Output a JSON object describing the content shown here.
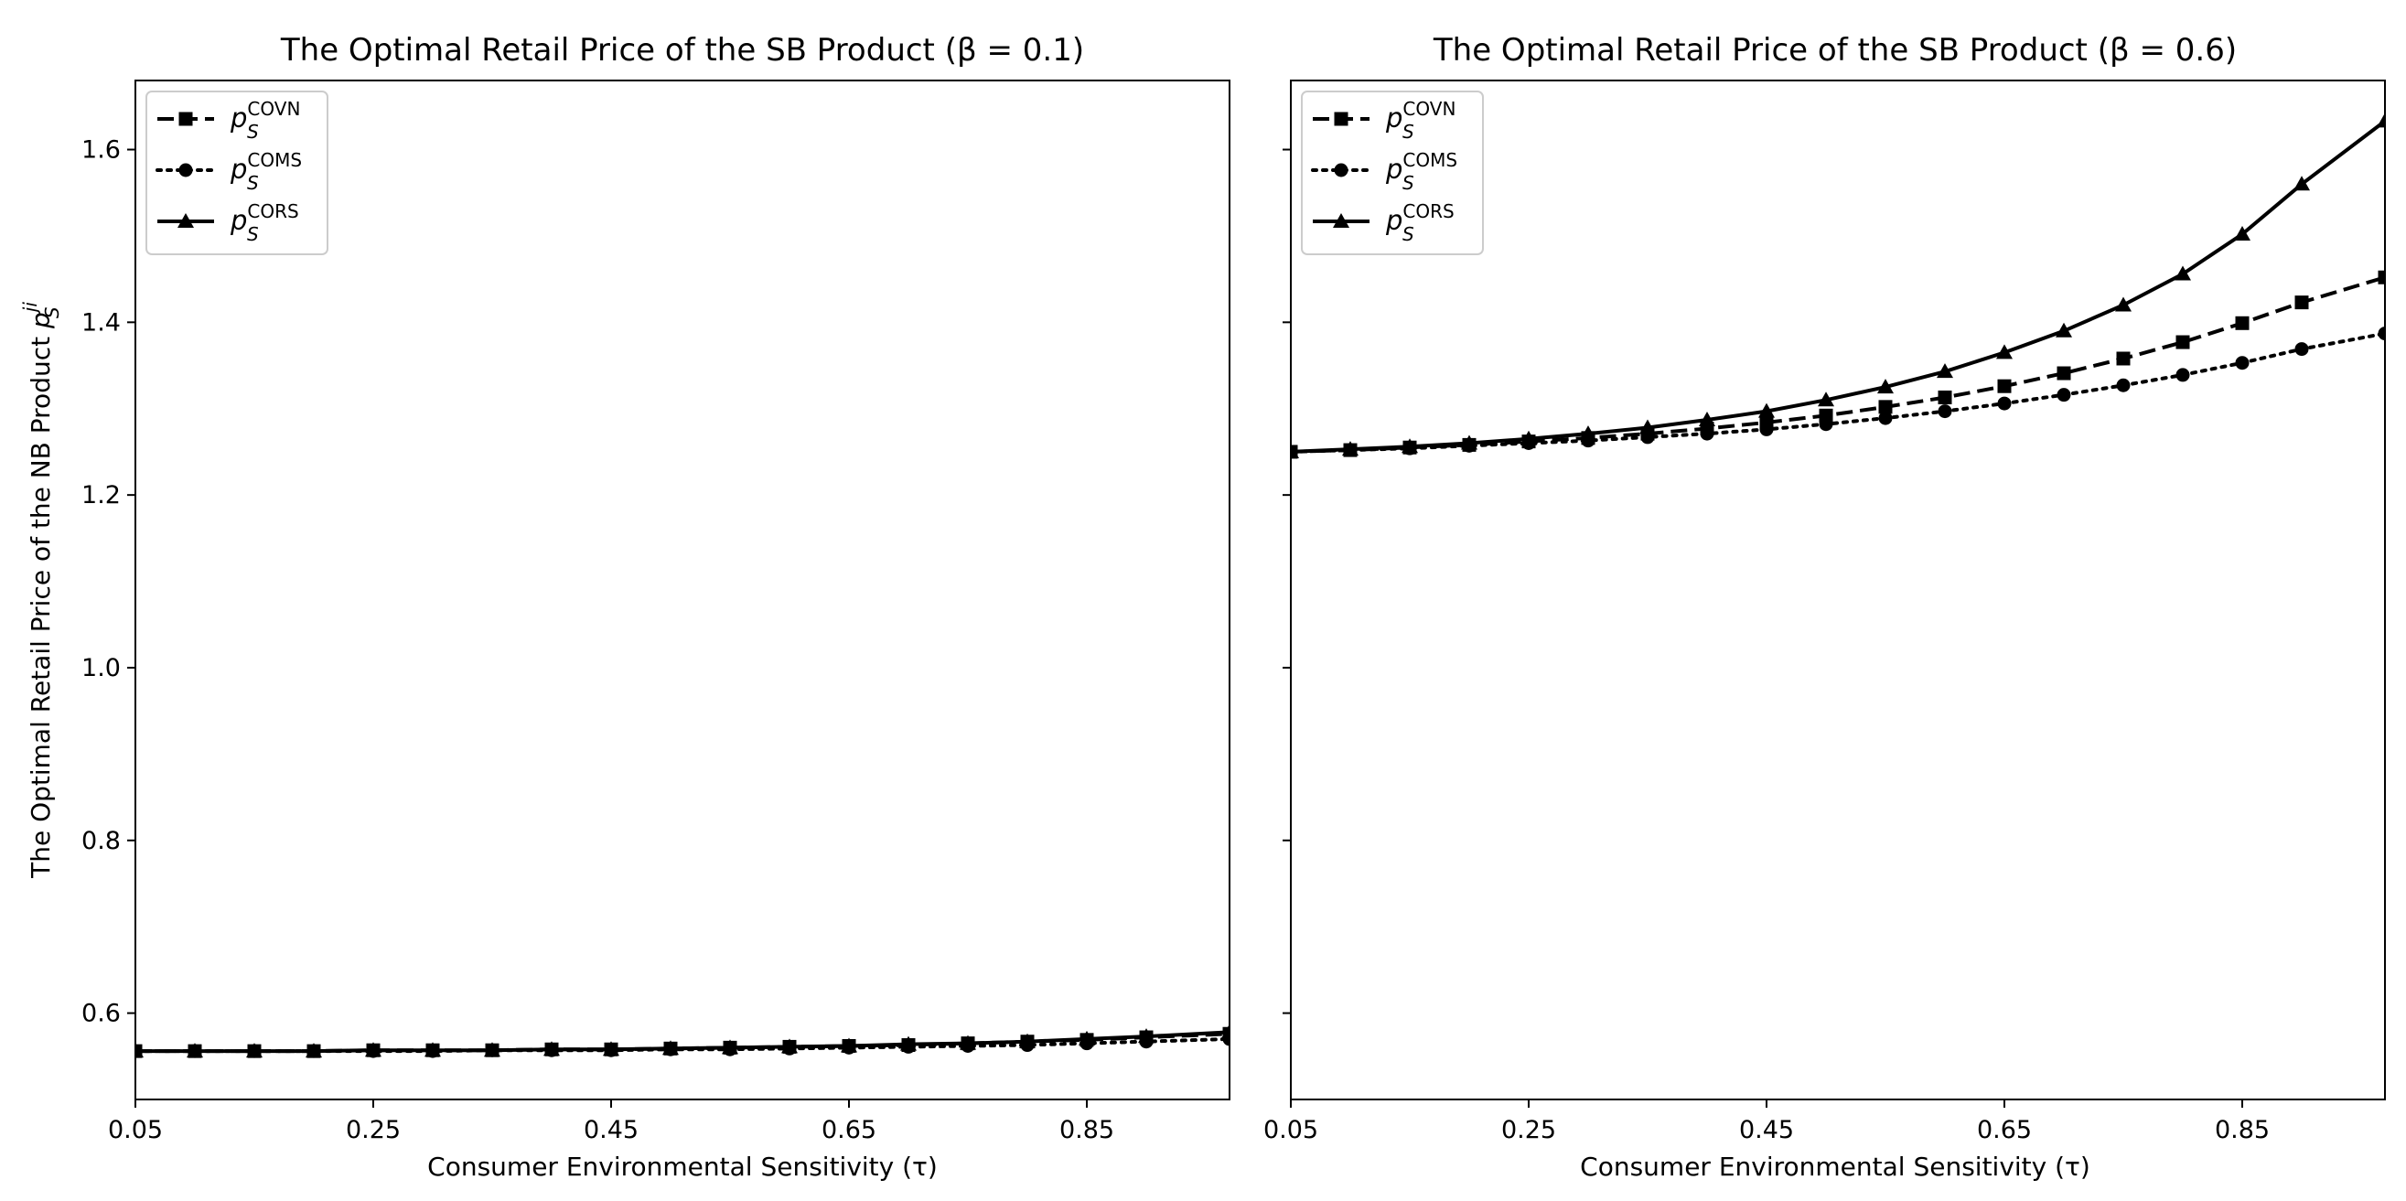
{
  "figure": {
    "ylabel_main": "The Optimal Retail Price of the NB Product ",
    "ylabel_math": "p",
    "ylabel_sub": "S",
    "ylabel_sup": "ji"
  },
  "legend_entries": [
    {
      "base": "p",
      "sub": "S",
      "sup": "COVN"
    },
    {
      "base": "p",
      "sub": "S",
      "sup": "COMS"
    },
    {
      "base": "p",
      "sub": "S",
      "sup": "CORS"
    }
  ],
  "chart_data": [
    {
      "type": "line",
      "title": "The Optimal Retail Price of the SB Product (β = 0.1)",
      "xlabel": "Consumer Environmental Sensitivity (τ)",
      "ylabel": "The Optimal Retail Price of the NB Product pS^ji",
      "xlim": [
        0.05,
        0.97
      ],
      "ylim": [
        0.5,
        1.68
      ],
      "xticks": [
        0.05,
        0.25,
        0.45,
        0.65,
        0.85
      ],
      "xtick_labels": [
        "0.05",
        "0.25",
        "0.45",
        "0.65",
        "0.85"
      ],
      "yticks": [
        0.6,
        0.8,
        1.0,
        1.2,
        1.4,
        1.6
      ],
      "ytick_labels": [
        "0.6",
        "0.8",
        "1.0",
        "1.2",
        "1.4",
        "1.6"
      ],
      "legend": "top-left",
      "x": [
        0.05,
        0.1,
        0.15,
        0.2,
        0.25,
        0.3,
        0.35,
        0.4,
        0.45,
        0.5,
        0.55,
        0.6,
        0.65,
        0.7,
        0.75,
        0.8,
        0.85,
        0.9,
        0.97
      ],
      "series": [
        {
          "name": "COVN",
          "style": "dashed",
          "marker": "square",
          "values": [
            0.556,
            0.556,
            0.556,
            0.556,
            0.557,
            0.557,
            0.557,
            0.558,
            0.558,
            0.559,
            0.56,
            0.561,
            0.562,
            0.563,
            0.565,
            0.567,
            0.569,
            0.572,
            0.576
          ]
        },
        {
          "name": "COMS",
          "style": "dotted",
          "marker": "circle",
          "values": [
            0.556,
            0.556,
            0.556,
            0.556,
            0.556,
            0.556,
            0.557,
            0.557,
            0.557,
            0.558,
            0.558,
            0.559,
            0.56,
            0.561,
            0.562,
            0.563,
            0.565,
            0.567,
            0.57
          ]
        },
        {
          "name": "CORS",
          "style": "solid",
          "marker": "triangle",
          "values": [
            0.556,
            0.556,
            0.556,
            0.556,
            0.557,
            0.557,
            0.557,
            0.558,
            0.558,
            0.559,
            0.56,
            0.561,
            0.562,
            0.564,
            0.565,
            0.567,
            0.57,
            0.573,
            0.578
          ]
        }
      ]
    },
    {
      "type": "line",
      "title": "The Optimal Retail Price of the SB Product (β = 0.6)",
      "xlabel": "Consumer Environmental Sensitivity (τ)",
      "xlim": [
        0.05,
        0.97
      ],
      "ylim": [
        0.5,
        1.68
      ],
      "xticks": [
        0.05,
        0.25,
        0.45,
        0.65,
        0.85
      ],
      "xtick_labels": [
        "0.05",
        "0.25",
        "0.45",
        "0.65",
        "0.85"
      ],
      "yticks": [
        0.6,
        0.8,
        1.0,
        1.2,
        1.4,
        1.6
      ],
      "legend": "top-left",
      "x": [
        0.05,
        0.1,
        0.15,
        0.2,
        0.25,
        0.3,
        0.35,
        0.4,
        0.45,
        0.5,
        0.55,
        0.6,
        0.65,
        0.7,
        0.75,
        0.8,
        0.85,
        0.9,
        0.97
      ],
      "series": [
        {
          "name": "COVN",
          "style": "dashed",
          "marker": "square",
          "values": [
            1.25,
            1.252,
            1.255,
            1.258,
            1.262,
            1.266,
            1.271,
            1.277,
            1.284,
            1.292,
            1.302,
            1.313,
            1.326,
            1.341,
            1.358,
            1.377,
            1.399,
            1.423,
            1.452
          ]
        },
        {
          "name": "COMS",
          "style": "dotted",
          "marker": "circle",
          "values": [
            1.25,
            1.252,
            1.254,
            1.257,
            1.26,
            1.263,
            1.267,
            1.271,
            1.276,
            1.282,
            1.289,
            1.297,
            1.306,
            1.316,
            1.327,
            1.339,
            1.353,
            1.369,
            1.387
          ]
        },
        {
          "name": "CORS",
          "style": "solid",
          "marker": "triangle",
          "values": [
            1.25,
            1.253,
            1.256,
            1.26,
            1.265,
            1.271,
            1.278,
            1.287,
            1.297,
            1.31,
            1.325,
            1.343,
            1.365,
            1.39,
            1.42,
            1.456,
            1.502,
            1.56,
            1.633
          ]
        }
      ]
    }
  ]
}
